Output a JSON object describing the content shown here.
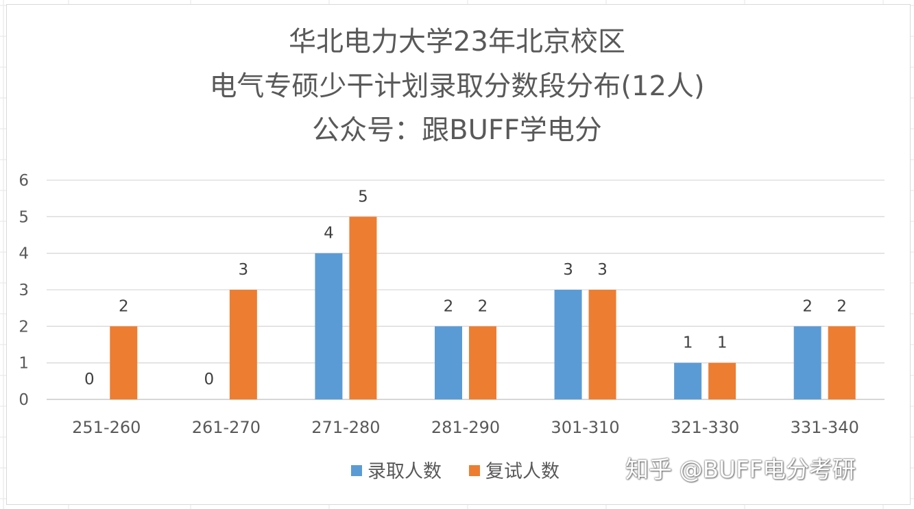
{
  "chart_data": {
    "type": "bar",
    "title_lines": [
      "华北电力大学23年北京校区",
      "电气专硕少干计划录取分数段分布(12人)",
      "公众号：跟BUFF学电分"
    ],
    "categories": [
      "251-260",
      "261-270",
      "271-280",
      "281-290",
      "301-310",
      "321-330",
      "331-340"
    ],
    "series": [
      {
        "name": "录取人数",
        "color": "#5b9bd5",
        "values": [
          0,
          0,
          4,
          2,
          3,
          1,
          2
        ]
      },
      {
        "name": "复试人数",
        "color": "#ed7d31",
        "values": [
          2,
          3,
          5,
          2,
          3,
          1,
          2
        ]
      }
    ],
    "y_ticks": [
      "0",
      "1",
      "2",
      "3",
      "4",
      "5",
      "6"
    ],
    "ylim": [
      0,
      6
    ],
    "grid": true,
    "legend": "bottom",
    "data_labels": true
  },
  "watermark": "知乎 @BUFF电分考研"
}
